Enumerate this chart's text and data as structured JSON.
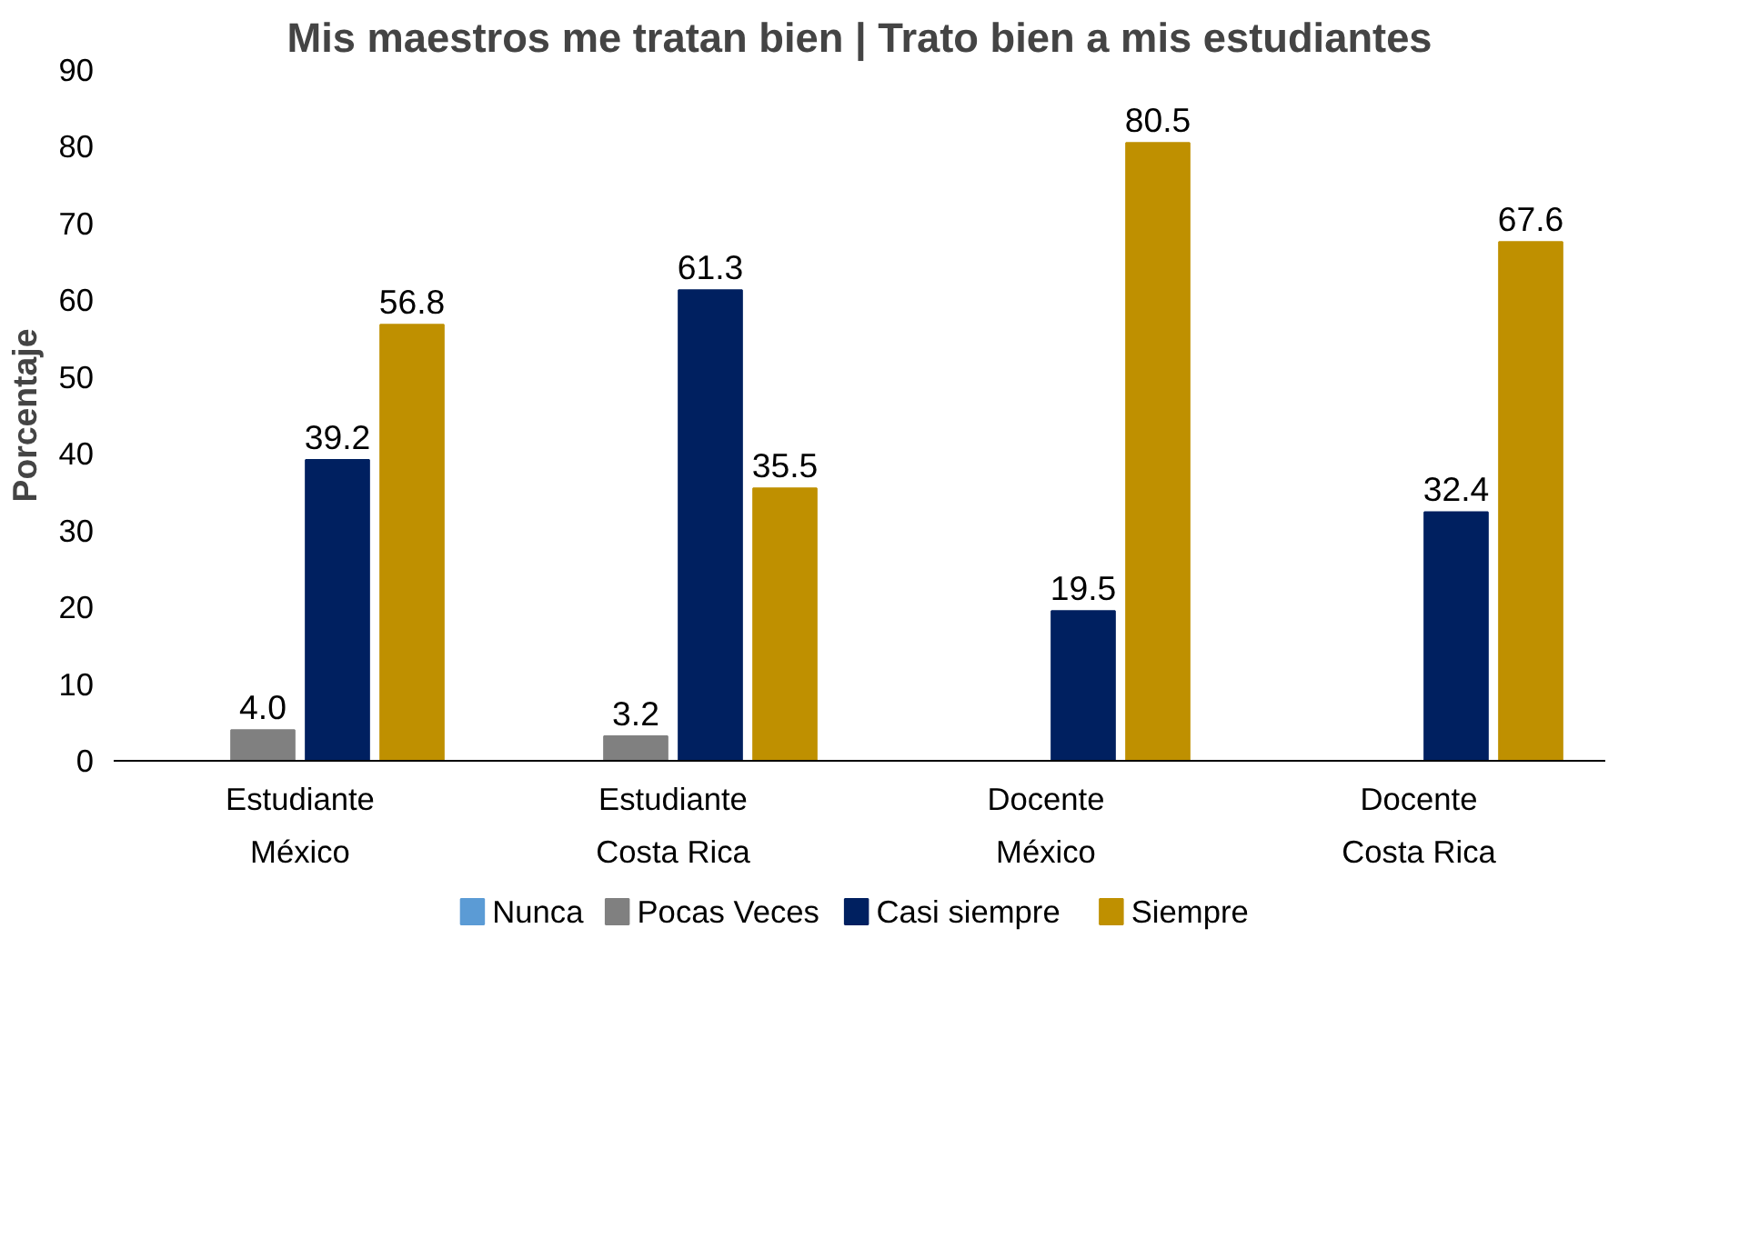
{
  "chart_data": {
    "type": "bar",
    "title": "Mis maestros me tratan bien | Trato bien a mis estudiantes",
    "ylabel": "Porcentaje",
    "categories": [
      "Estudiante\nMéxico",
      "Estudiante\nCosta Rica",
      "Docente\nMéxico",
      "Docente\nCosta Rica"
    ],
    "series": [
      {
        "name": "Nunca",
        "color": "#5b9bd5",
        "values": [
          null,
          null,
          null,
          null
        ]
      },
      {
        "name": "Pocas Veces",
        "color": "#808080",
        "values": [
          4.0,
          3.2,
          null,
          null
        ],
        "value_labels": [
          "4.0",
          "3.2",
          null,
          null
        ]
      },
      {
        "name": "Casi siempre",
        "color": "#002060",
        "values": [
          39.2,
          61.3,
          19.5,
          32.4
        ],
        "value_labels": [
          "39.2",
          "61.3",
          "19.5",
          "32.4"
        ]
      },
      {
        "name": "Siempre",
        "color": "#bf9000",
        "values": [
          56.8,
          35.5,
          80.5,
          67.6
        ],
        "value_labels": [
          "56.8",
          "35.5",
          "80.5",
          "67.6"
        ]
      }
    ],
    "ylim": [
      0,
      90
    ],
    "yticks": [
      0,
      10,
      20,
      30,
      40,
      50,
      60,
      70,
      80,
      90
    ],
    "grid": false,
    "legend": "bottom"
  }
}
